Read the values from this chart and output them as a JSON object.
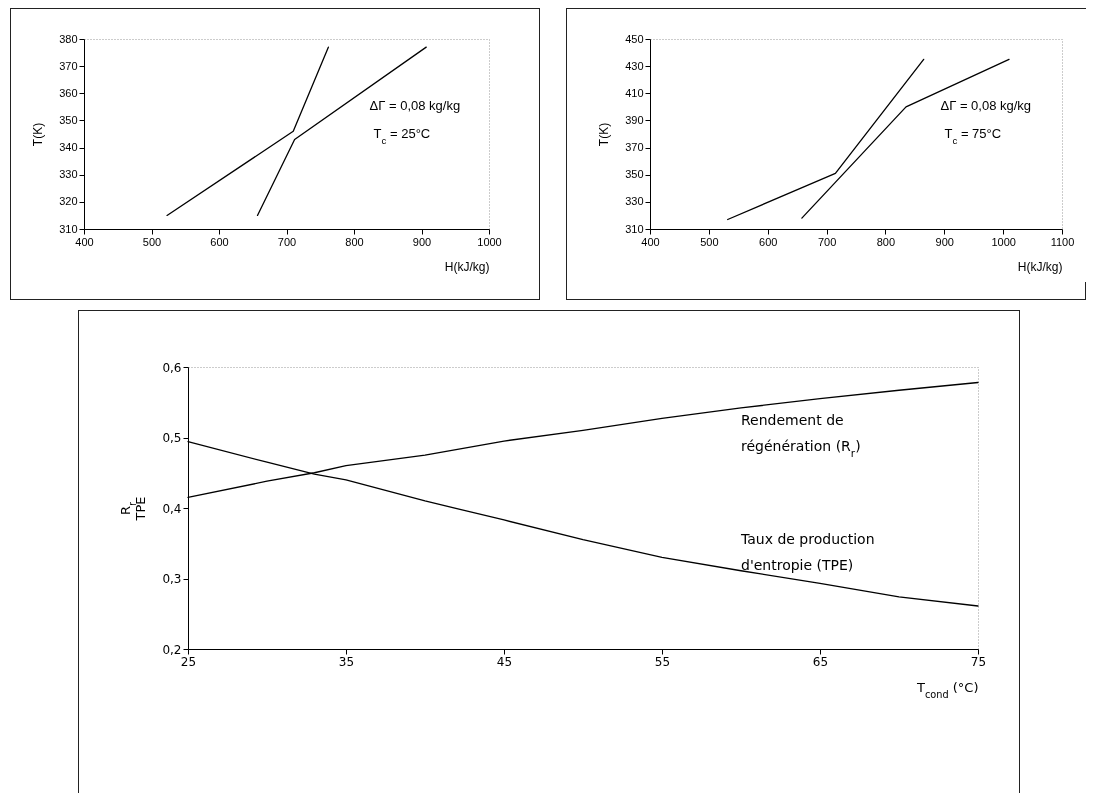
{
  "chart_data": [
    {
      "type": "line",
      "xlabel": "H(kJ/kg)",
      "ylabel": "T(K)",
      "xlim": [
        400,
        1000
      ],
      "xticks": [
        400,
        500,
        600,
        700,
        800,
        900,
        1000
      ],
      "ylim": [
        310,
        380
      ],
      "yticks": [
        310,
        320,
        330,
        340,
        350,
        360,
        370,
        380
      ],
      "annotations": [
        "ΔΓ = 0,08 kg/kg",
        "T$_{c}$ = 25°C"
      ],
      "series": [
        {
          "color": "#000000",
          "x": [
            523,
            710,
            762
          ],
          "values": [
            315,
            346,
            377
          ]
        },
        {
          "color": "#000000",
          "x": [
            657,
            712,
            907
          ],
          "values": [
            315,
            343,
            377
          ]
        }
      ]
    },
    {
      "type": "line",
      "xlabel": "H(kJ/kg)",
      "ylabel": "T(K)",
      "xlim": [
        400,
        1100
      ],
      "xticks": [
        400,
        500,
        600,
        700,
        800,
        900,
        1000,
        1100
      ],
      "ylim": [
        310,
        450
      ],
      "yticks": [
        310,
        330,
        350,
        370,
        390,
        410,
        430,
        450
      ],
      "annotations": [
        "ΔΓ = 0,08 kg/kg",
        "T$_{c}$ = 75°C"
      ],
      "series": [
        {
          "color": "#000000",
          "x": [
            532,
            715,
            865
          ],
          "values": [
            317,
            351,
            435
          ]
        },
        {
          "color": "#000000",
          "x": [
            658,
            835,
            1010
          ],
          "values": [
            318,
            400,
            435
          ]
        }
      ]
    },
    {
      "type": "line",
      "xlabel": "T$_{cond}$ (°C)",
      "ylabel": "R$_{r}$\nTPE",
      "xlim": [
        25,
        75
      ],
      "xticks": [
        25,
        35,
        45,
        55,
        65,
        75
      ],
      "ylim": [
        0.2,
        0.6
      ],
      "yticks": [
        {
          "value": 0.2,
          "label": "0,2"
        },
        {
          "value": 0.3,
          "label": "0,3"
        },
        {
          "value": 0.4,
          "label": "0,4"
        },
        {
          "value": 0.5,
          "label": "0,5"
        },
        {
          "value": 0.6,
          "label": "0,6"
        }
      ],
      "x": [
        25,
        30,
        33,
        35,
        40,
        45,
        50,
        55,
        60,
        65,
        70,
        75
      ],
      "series": [
        {
          "name": "Rendement de\nrégénération (R$_{r}$)",
          "color": "#000000",
          "values": [
            0.415,
            0.438,
            0.45,
            0.46,
            0.475,
            0.495,
            0.51,
            0.527,
            0.542,
            0.555,
            0.567,
            0.578
          ]
        },
        {
          "name": "Taux de production\nd'entropie (TPE)",
          "color": "#000000",
          "values": [
            0.494,
            0.465,
            0.448,
            0.44,
            0.41,
            0.383,
            0.355,
            0.33,
            0.311,
            0.293,
            0.274,
            0.261
          ]
        }
      ]
    }
  ]
}
